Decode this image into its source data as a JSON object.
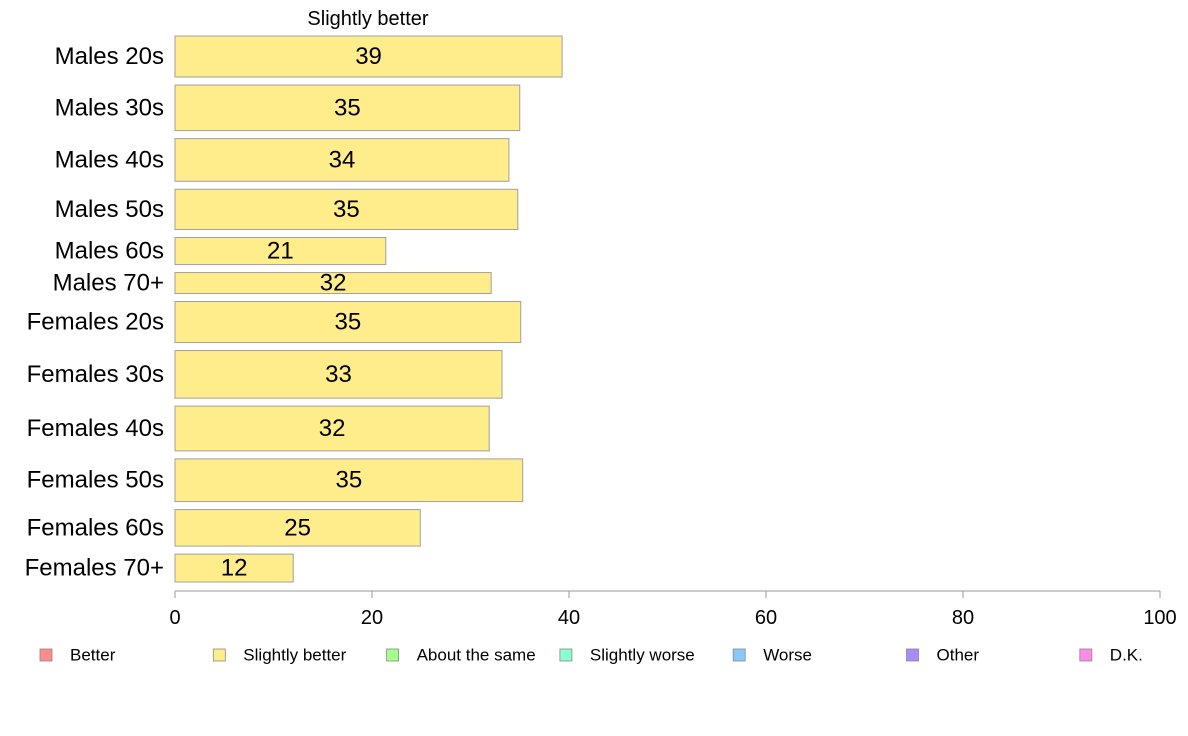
{
  "chart_data": {
    "type": "bar",
    "orientation": "horizontal",
    "title": "Slightly better",
    "categories": [
      "Males 20s",
      "Males 30s",
      "Males 40s",
      "Males 50s",
      "Males 60s",
      "Males 70+",
      "Females 20s",
      "Females 30s",
      "Females 40s",
      "Females 50s",
      "Females 60s",
      "Females 70+"
    ],
    "series": [
      {
        "name": "Slightly better",
        "color": "#ffec8b",
        "values": [
          39.3,
          35.0,
          33.9,
          34.8,
          21.4,
          32.1,
          35.1,
          33.2,
          31.9,
          35.3,
          24.9,
          12.0
        ],
        "labels": [
          "39",
          "35",
          "34",
          "35",
          "21",
          "32",
          "35",
          "33",
          "32",
          "35",
          "25",
          "12"
        ]
      }
    ],
    "bar_weights": [
      1.0,
      1.11,
      1.04,
      0.98,
      0.66,
      0.51,
      1.0,
      1.16,
      1.09,
      1.04,
      0.89,
      0.68
    ],
    "xlim": [
      0,
      100
    ],
    "xticks": [
      "0",
      "20",
      "40",
      "60",
      "80",
      "100"
    ],
    "xlabel": "",
    "ylabel": "",
    "grid": false,
    "legend_position": "bottom",
    "legend": [
      {
        "label": "Better",
        "color": "#ff8b8b"
      },
      {
        "label": "Slightly better",
        "color": "#ffec8b"
      },
      {
        "label": "About the same",
        "color": "#a3ff8b"
      },
      {
        "label": "Slightly worse",
        "color": "#8bffd0"
      },
      {
        "label": "Worse",
        "color": "#8bc7ff"
      },
      {
        "label": "Other",
        "color": "#a98bff"
      },
      {
        "label": "D.K.",
        "color": "#ff8be9"
      }
    ],
    "colors": {
      "bar_stroke": "#a0a0a0",
      "axis": "#999999"
    }
  }
}
